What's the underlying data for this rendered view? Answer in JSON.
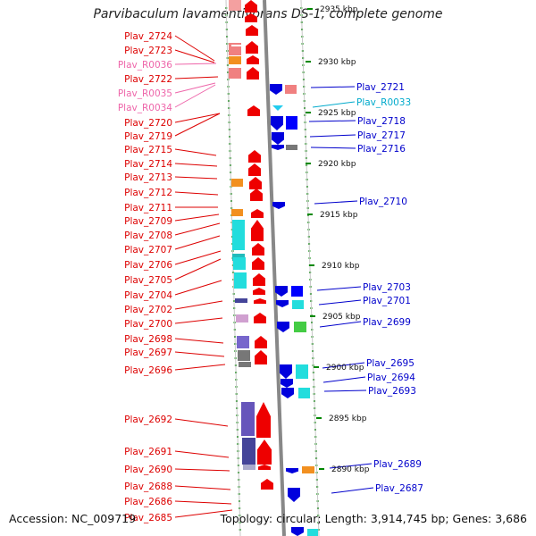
{
  "title": "Parvibaculum lavamentivorans DS-1, complete genome",
  "footer": {
    "accession": "Accession: NC_009719",
    "summary": "Topology: circular; Length: 3,914,745 bp; Genes: 3,686"
  },
  "colors": {
    "minus_label": "#dd0000",
    "rna_minus_label": "#ee66aa",
    "plus_label": "#0000cc",
    "rna_plus_label": "#00aacc",
    "minus_gene": "#ee0000",
    "plus_gene": "#0000dd",
    "backbone": "#888888",
    "tick": "#008800"
  },
  "kbp_marks": [
    {
      "label": "2935 kbp",
      "ypos": 10
    },
    {
      "label": "2930 kbp",
      "ypos": 69
    },
    {
      "label": "2925 kbp",
      "ypos": 126
    },
    {
      "label": "2920 kbp",
      "ypos": 183
    },
    {
      "label": "2915 kbp",
      "ypos": 240
    },
    {
      "label": "2910 kbp",
      "ypos": 297
    },
    {
      "label": "2905 kbp",
      "ypos": 354
    },
    {
      "label": "2900 kbp",
      "ypos": 411
    },
    {
      "label": "2895 kbp",
      "ypos": 468
    },
    {
      "label": "2890 kbp",
      "ypos": 525
    }
  ],
  "minus_strand_genes": [
    {
      "id": "Plav_2724",
      "type": "gene"
    },
    {
      "id": "Plav_2723",
      "type": "gene"
    },
    {
      "id": "Plav_R0036",
      "type": "rna"
    },
    {
      "id": "Plav_2722",
      "type": "gene"
    },
    {
      "id": "Plav_R0035",
      "type": "rna"
    },
    {
      "id": "Plav_R0034",
      "type": "rna"
    },
    {
      "id": "Plav_2720",
      "type": "gene"
    },
    {
      "id": "Plav_2719",
      "type": "gene"
    },
    {
      "id": "Plav_2715",
      "type": "gene"
    },
    {
      "id": "Plav_2714",
      "type": "gene"
    },
    {
      "id": "Plav_2713",
      "type": "gene"
    },
    {
      "id": "Plav_2712",
      "type": "gene"
    },
    {
      "id": "Plav_2711",
      "type": "gene"
    },
    {
      "id": "Plav_2709",
      "type": "gene"
    },
    {
      "id": "Plav_2708",
      "type": "gene"
    },
    {
      "id": "Plav_2707",
      "type": "gene"
    },
    {
      "id": "Plav_2706",
      "type": "gene"
    },
    {
      "id": "Plav_2705",
      "type": "gene"
    },
    {
      "id": "Plav_2704",
      "type": "gene"
    },
    {
      "id": "Plav_2702",
      "type": "gene"
    },
    {
      "id": "Plav_2700",
      "type": "gene"
    },
    {
      "id": "Plav_2698",
      "type": "gene"
    },
    {
      "id": "Plav_2697",
      "type": "gene"
    },
    {
      "id": "Plav_2696",
      "type": "gene"
    },
    {
      "id": "Plav_2692",
      "type": "gene"
    },
    {
      "id": "Plav_2691",
      "type": "gene"
    },
    {
      "id": "Plav_2690",
      "type": "gene"
    },
    {
      "id": "Plav_2688",
      "type": "gene"
    },
    {
      "id": "Plav_2686",
      "type": "gene"
    },
    {
      "id": "Plav_2685",
      "type": "gene"
    }
  ],
  "plus_strand_genes": [
    {
      "id": "Plav_2721",
      "type": "gene"
    },
    {
      "id": "Plav_R0033",
      "type": "rna"
    },
    {
      "id": "Plav_2718",
      "type": "gene"
    },
    {
      "id": "Plav_2717",
      "type": "gene"
    },
    {
      "id": "Plav_2716",
      "type": "gene"
    },
    {
      "id": "Plav_2710",
      "type": "gene"
    },
    {
      "id": "Plav_2703",
      "type": "gene"
    },
    {
      "id": "Plav_2701",
      "type": "gene"
    },
    {
      "id": "Plav_2699",
      "type": "gene"
    },
    {
      "id": "Plav_2695",
      "type": "gene"
    },
    {
      "id": "Plav_2694",
      "type": "gene"
    },
    {
      "id": "Plav_2693",
      "type": "gene"
    },
    {
      "id": "Plav_2689",
      "type": "gene"
    },
    {
      "id": "Plav_2687",
      "type": "gene"
    }
  ]
}
